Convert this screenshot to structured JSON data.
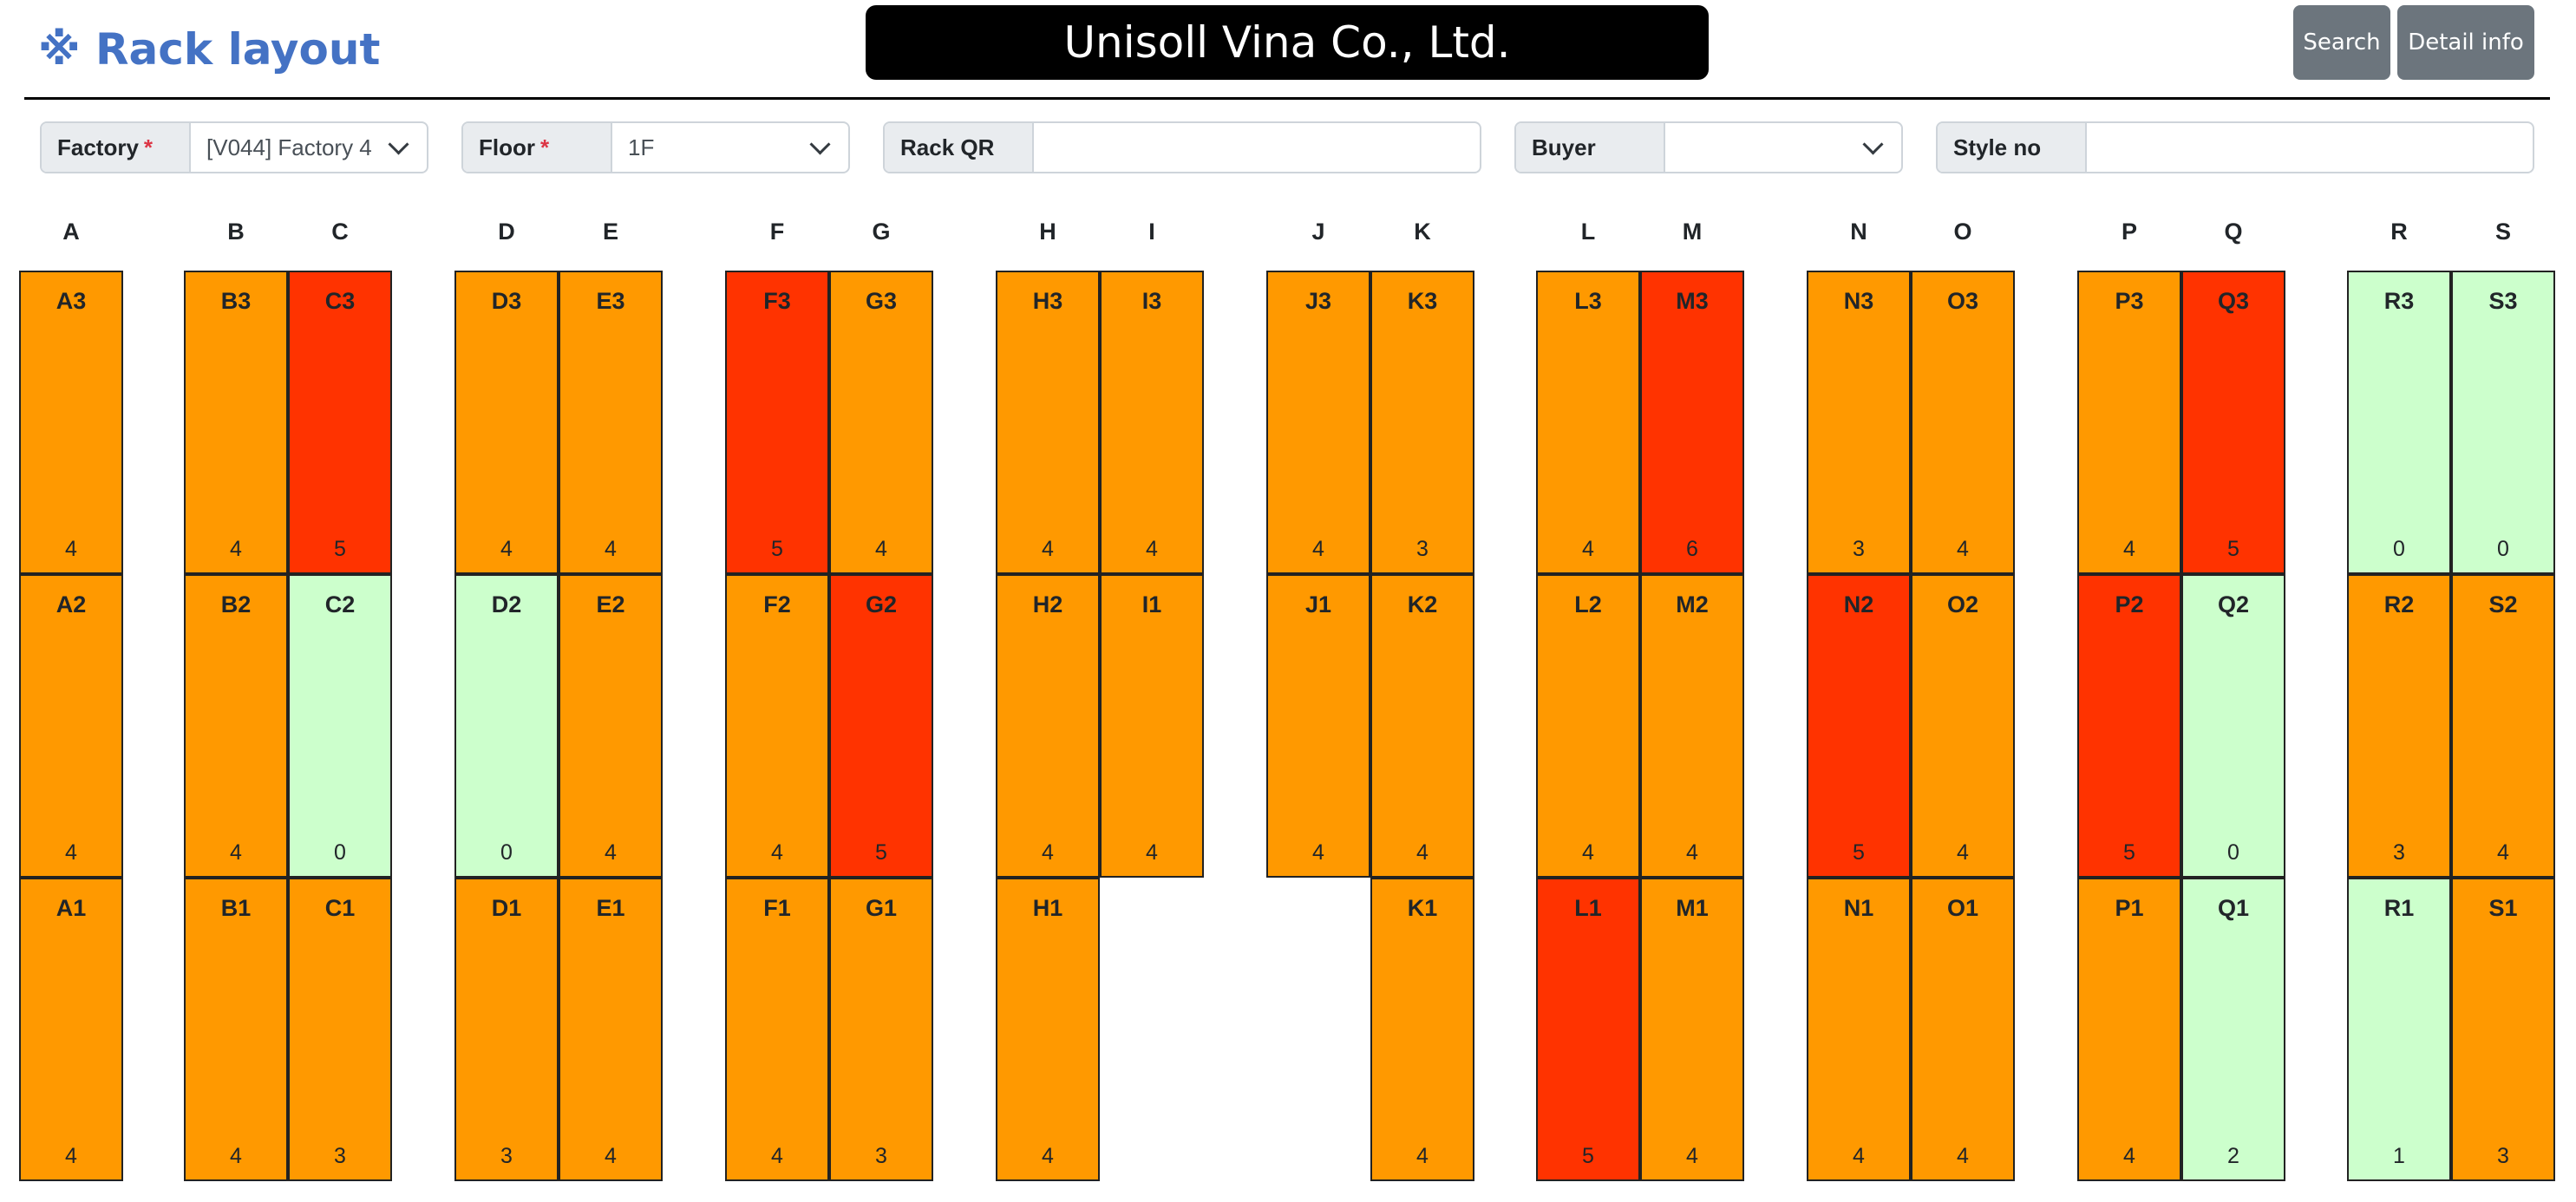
{
  "header": {
    "title_icon": "※",
    "title": "Rack layout",
    "company": "Unisoll Vina Co., Ltd.",
    "search_label": "Search",
    "detail_label": "Detail info"
  },
  "filters": {
    "factory": {
      "label": "Factory",
      "value": "[V044] Factory 4"
    },
    "floor": {
      "label": "Floor",
      "value": "1F"
    },
    "rack_qr": {
      "label": "Rack QR",
      "value": ""
    },
    "buyer": {
      "label": "Buyer",
      "value": ""
    },
    "style_no": {
      "label": "Style no",
      "value": ""
    },
    "required_mark": "*"
  },
  "colors": {
    "orange": "#ff9900",
    "red": "#ff3300",
    "green": "#ccffcc"
  },
  "columns": [
    {
      "name": "A",
      "cells": [
        {
          "label": "A3",
          "count": 4,
          "status": "orange"
        },
        {
          "label": "A2",
          "count": 4,
          "status": "orange"
        },
        {
          "label": "A1",
          "count": 4,
          "status": "orange"
        }
      ]
    },
    {
      "name": "B",
      "cells": [
        {
          "label": "B3",
          "count": 4,
          "status": "orange"
        },
        {
          "label": "B2",
          "count": 4,
          "status": "orange"
        },
        {
          "label": "B1",
          "count": 4,
          "status": "orange"
        }
      ]
    },
    {
      "name": "C",
      "cells": [
        {
          "label": "C3",
          "count": 5,
          "status": "red"
        },
        {
          "label": "C2",
          "count": 0,
          "status": "green"
        },
        {
          "label": "C1",
          "count": 3,
          "status": "orange"
        }
      ]
    },
    {
      "name": "D",
      "cells": [
        {
          "label": "D3",
          "count": 4,
          "status": "orange"
        },
        {
          "label": "D2",
          "count": 0,
          "status": "green"
        },
        {
          "label": "D1",
          "count": 3,
          "status": "orange"
        }
      ]
    },
    {
      "name": "E",
      "cells": [
        {
          "label": "E3",
          "count": 4,
          "status": "orange"
        },
        {
          "label": "E2",
          "count": 4,
          "status": "orange"
        },
        {
          "label": "E1",
          "count": 4,
          "status": "orange"
        }
      ]
    },
    {
      "name": "F",
      "cells": [
        {
          "label": "F3",
          "count": 5,
          "status": "red"
        },
        {
          "label": "F2",
          "count": 4,
          "status": "orange"
        },
        {
          "label": "F1",
          "count": 4,
          "status": "orange"
        }
      ]
    },
    {
      "name": "G",
      "cells": [
        {
          "label": "G3",
          "count": 4,
          "status": "orange"
        },
        {
          "label": "G2",
          "count": 5,
          "status": "red"
        },
        {
          "label": "G1",
          "count": 3,
          "status": "orange"
        }
      ]
    },
    {
      "name": "H",
      "cells": [
        {
          "label": "H3",
          "count": 4,
          "status": "orange"
        },
        {
          "label": "H2",
          "count": 4,
          "status": "orange"
        },
        {
          "label": "H1",
          "count": 4,
          "status": "orange"
        }
      ]
    },
    {
      "name": "I",
      "cells": [
        {
          "label": "I3",
          "count": 4,
          "status": "orange"
        },
        {
          "label": "I1",
          "count": 4,
          "status": "orange"
        },
        null
      ]
    },
    {
      "name": "J",
      "cells": [
        {
          "label": "J3",
          "count": 4,
          "status": "orange"
        },
        {
          "label": "J1",
          "count": 4,
          "status": "orange"
        },
        null
      ]
    },
    {
      "name": "K",
      "cells": [
        {
          "label": "K3",
          "count": 3,
          "status": "orange"
        },
        {
          "label": "K2",
          "count": 4,
          "status": "orange"
        },
        {
          "label": "K1",
          "count": 4,
          "status": "orange"
        }
      ]
    },
    {
      "name": "L",
      "cells": [
        {
          "label": "L3",
          "count": 4,
          "status": "orange"
        },
        {
          "label": "L2",
          "count": 4,
          "status": "orange"
        },
        {
          "label": "L1",
          "count": 5,
          "status": "red"
        }
      ]
    },
    {
      "name": "M",
      "cells": [
        {
          "label": "M3",
          "count": 6,
          "status": "red"
        },
        {
          "label": "M2",
          "count": 4,
          "status": "orange"
        },
        {
          "label": "M1",
          "count": 4,
          "status": "orange"
        }
      ]
    },
    {
      "name": "N",
      "cells": [
        {
          "label": "N3",
          "count": 3,
          "status": "orange"
        },
        {
          "label": "N2",
          "count": 5,
          "status": "red"
        },
        {
          "label": "N1",
          "count": 4,
          "status": "orange"
        }
      ]
    },
    {
      "name": "O",
      "cells": [
        {
          "label": "O3",
          "count": 4,
          "status": "orange"
        },
        {
          "label": "O2",
          "count": 4,
          "status": "orange"
        },
        {
          "label": "O1",
          "count": 4,
          "status": "orange"
        }
      ]
    },
    {
      "name": "P",
      "cells": [
        {
          "label": "P3",
          "count": 4,
          "status": "orange"
        },
        {
          "label": "P2",
          "count": 5,
          "status": "red"
        },
        {
          "label": "P1",
          "count": 4,
          "status": "orange"
        }
      ]
    },
    {
      "name": "Q",
      "cells": [
        {
          "label": "Q3",
          "count": 5,
          "status": "red"
        },
        {
          "label": "Q2",
          "count": 0,
          "status": "green"
        },
        {
          "label": "Q1",
          "count": 2,
          "status": "green"
        }
      ]
    },
    {
      "name": "R",
      "cells": [
        {
          "label": "R3",
          "count": 0,
          "status": "green"
        },
        {
          "label": "R2",
          "count": 3,
          "status": "orange"
        },
        {
          "label": "R1",
          "count": 1,
          "status": "green"
        }
      ]
    },
    {
      "name": "S",
      "cells": [
        {
          "label": "S3",
          "count": 0,
          "status": "green"
        },
        {
          "label": "S2",
          "count": 4,
          "status": "orange"
        },
        {
          "label": "S1",
          "count": 3,
          "status": "orange"
        }
      ]
    }
  ]
}
